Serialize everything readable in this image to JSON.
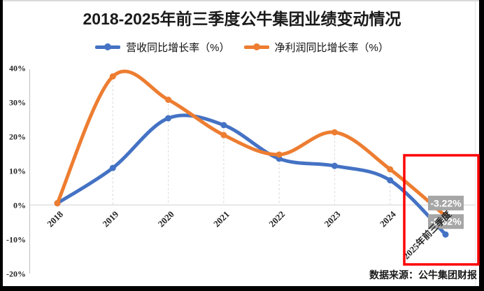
{
  "title": "2018-2025年前三季度公牛集团业绩变动情况",
  "legend": {
    "items": [
      {
        "label": "营收同比增长率（%）",
        "color": "#4472C4"
      },
      {
        "label": "净利润同比增长率（%）",
        "color": "#ED7D31"
      }
    ]
  },
  "chart_data": {
    "type": "line",
    "smooth": true,
    "title": "2018-2025年前三季度公牛集团业绩变动情况",
    "categories": [
      "2018",
      "2019",
      "2020",
      "2021",
      "2022",
      "2023",
      "2024",
      "2025年前三季度"
    ],
    "series": [
      {
        "name": "营收同比增长率（%）",
        "color": "#4472C4",
        "values": [
          0.5,
          10.8,
          25.3,
          23.3,
          13.5,
          11.4,
          7.2,
          -8.62
        ],
        "end_label": "-8.62%"
      },
      {
        "name": "净利润同比增长率（%）",
        "color": "#ED7D31",
        "values": [
          0.5,
          37.5,
          30.7,
          20.4,
          14.7,
          21.2,
          10.4,
          -3.22
        ],
        "end_label": "-3.22%"
      }
    ],
    "y_axis": {
      "ticks": [
        {
          "label": "40%",
          "value": 40
        },
        {
          "label": "30%",
          "value": 30
        },
        {
          "label": "20%",
          "value": 20
        },
        {
          "label": "10%",
          "value": 10
        },
        {
          "label": "0%",
          "value": 0
        },
        {
          "label": "-10%",
          "value": -10
        },
        {
          "label": "-20%",
          "value": -20
        }
      ],
      "range": [
        -20,
        40
      ]
    },
    "grid": {
      "horizontal": "zero-line-only",
      "vertical": "dashed-drop-lines"
    },
    "legend_position": "top",
    "marker": "circle",
    "annotation_label_bg": "#A6A6A6",
    "annotation_label_color": "#FFFFFF",
    "axis_color": "#BFBFBF",
    "gridline_color": "#D9D9D9",
    "highlight_box": {
      "color": "#FF0000",
      "x": 578,
      "y": 222,
      "w": 106,
      "h": 156
    }
  },
  "footer": {
    "source": "数据来源：公牛集团财报"
  }
}
